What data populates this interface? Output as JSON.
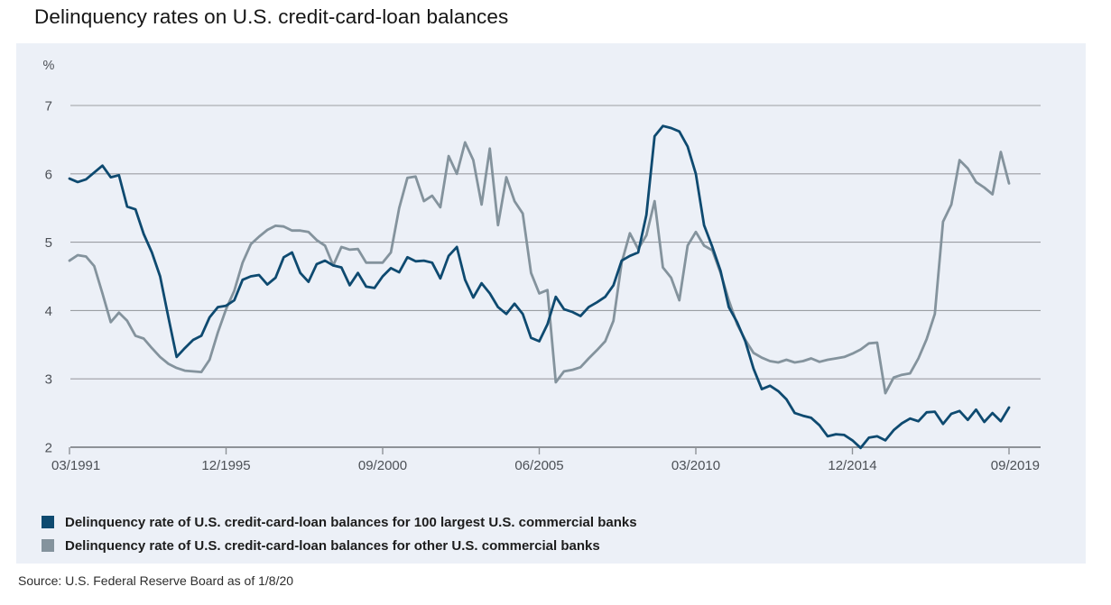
{
  "title": "Delinquency rates on U.S. credit-card-loan balances",
  "source": "Source: U.S. Federal Reserve Board as of 1/8/20",
  "panel": {
    "background": "#ecf0f7"
  },
  "axis_style": {
    "gridline_color": "#9b9ea3",
    "axis_line_color": "#8e9297",
    "tick_label_color": "#4c5056"
  },
  "chart_data": {
    "type": "line",
    "frequency": "quarterly",
    "start": "03/1991",
    "end": "09/2019",
    "unit_label": "%",
    "ylim": [
      2,
      7
    ],
    "y_ticks": [
      7,
      6,
      5,
      4,
      3,
      2
    ],
    "x_tick_labels": [
      "03/1991",
      "12/1995",
      "09/2000",
      "06/2005",
      "03/2010",
      "12/2014",
      "09/2019"
    ],
    "x_tick_indices": [
      0,
      19,
      38,
      57,
      76,
      95,
      114
    ],
    "grid": "horizontal",
    "legend_position": "bottom-left",
    "series": [
      {
        "name": "Delinquency rate of U.S. credit-card-loan balances for 100 largest U.S. commercial banks",
        "color": "#0e4a70",
        "values": [
          5.93,
          5.88,
          5.92,
          6.02,
          6.12,
          5.95,
          5.98,
          5.52,
          5.48,
          5.12,
          4.85,
          4.5,
          3.9,
          3.32,
          3.45,
          3.57,
          3.63,
          3.9,
          4.05,
          4.07,
          4.15,
          4.45,
          4.5,
          4.52,
          4.38,
          4.48,
          4.78,
          4.85,
          4.55,
          4.42,
          4.68,
          4.73,
          4.66,
          4.63,
          4.37,
          4.55,
          4.35,
          4.33,
          4.5,
          4.62,
          4.56,
          4.78,
          4.72,
          4.73,
          4.7,
          4.47,
          4.8,
          4.93,
          4.45,
          4.19,
          4.4,
          4.25,
          4.05,
          3.95,
          4.1,
          3.95,
          3.6,
          3.55,
          3.8,
          4.2,
          4.02,
          3.98,
          3.92,
          4.05,
          4.12,
          4.2,
          4.37,
          4.73,
          4.8,
          4.85,
          5.4,
          6.55,
          6.7,
          6.67,
          6.62,
          6.4,
          6.0,
          5.25,
          4.93,
          4.58,
          4.05,
          3.83,
          3.55,
          3.15,
          2.85,
          2.9,
          2.82,
          2.7,
          2.5,
          2.46,
          2.43,
          2.32,
          2.16,
          2.19,
          2.18,
          2.1,
          1.99,
          2.14,
          2.16,
          2.1,
          2.25,
          2.35,
          2.42,
          2.38,
          2.51,
          2.52,
          2.34,
          2.49,
          2.53,
          2.4,
          2.55,
          2.37,
          2.5,
          2.38,
          2.58
        ]
      },
      {
        "name": "Delinquency rate of U.S. credit-card-loan balances for other U.S. commercial banks",
        "color": "#84939d",
        "values": [
          4.73,
          4.81,
          4.79,
          4.65,
          4.25,
          3.83,
          3.97,
          3.85,
          3.63,
          3.59,
          3.45,
          3.32,
          3.22,
          3.16,
          3.12,
          3.11,
          3.1,
          3.28,
          3.68,
          4.02,
          4.29,
          4.7,
          4.97,
          5.08,
          5.18,
          5.24,
          5.23,
          5.17,
          5.17,
          5.15,
          5.03,
          4.95,
          4.66,
          4.93,
          4.89,
          4.9,
          4.7,
          4.7,
          4.7,
          4.85,
          5.5,
          5.94,
          5.96,
          5.6,
          5.68,
          5.51,
          6.26,
          6.0,
          6.46,
          6.2,
          5.55,
          6.37,
          5.25,
          5.95,
          5.6,
          5.42,
          4.55,
          4.25,
          4.3,
          2.95,
          3.11,
          3.13,
          3.17,
          3.3,
          3.42,
          3.55,
          3.85,
          4.7,
          5.13,
          4.9,
          5.1,
          5.6,
          4.63,
          4.48,
          4.15,
          4.95,
          5.15,
          4.95,
          4.88,
          4.55,
          4.15,
          3.8,
          3.57,
          3.38,
          3.31,
          3.26,
          3.24,
          3.28,
          3.24,
          3.26,
          3.3,
          3.25,
          3.28,
          3.3,
          3.32,
          3.37,
          3.43,
          3.52,
          3.53,
          2.79,
          3.02,
          3.06,
          3.08,
          3.3,
          3.58,
          3.95,
          5.3,
          5.55,
          6.2,
          6.08,
          5.88,
          5.8,
          5.7,
          6.32,
          5.86
        ]
      }
    ]
  }
}
